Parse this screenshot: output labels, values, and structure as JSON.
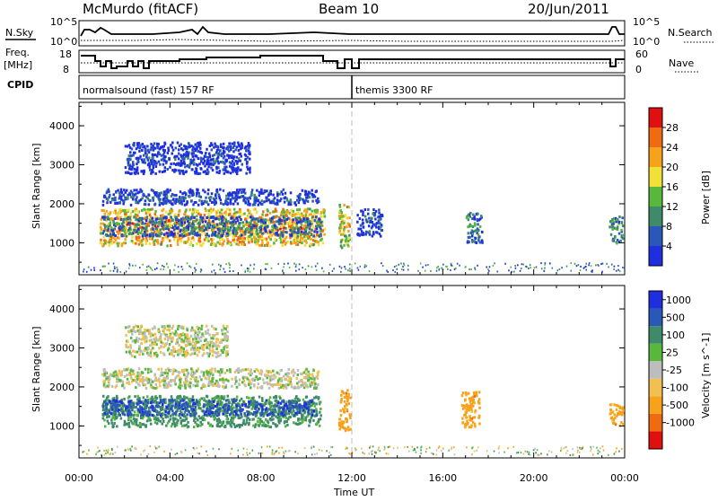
{
  "header": {
    "station": "McMurdo (fitACF)",
    "beam": "Beam 10",
    "date": "20/Jun/2011"
  },
  "top_panels": {
    "nsky_label": "N.Sky",
    "nsky_ticks": [
      "10^5",
      "10^0"
    ],
    "nsearch_label": "N.Search",
    "nsearch_ticks": [
      "10^5",
      "10^0"
    ],
    "freq_label": "Freq.",
    "freq_unit": "[MHz]",
    "freq_ticks": [
      "18",
      "8"
    ],
    "nave_label": "Nave",
    "nave_ticks": [
      "60",
      "0"
    ],
    "cpid_label": "CPID",
    "cpid_segments": [
      {
        "label": "normalsound (fast) 157 RF",
        "start_hour": 0
      },
      {
        "label": "themis 3300 RF",
        "start_hour": 12
      }
    ]
  },
  "x_axis": {
    "label": "Time UT",
    "tick_labels": [
      "00:00",
      "04:00",
      "08:00",
      "12:00",
      "16:00",
      "20:00",
      "00:00"
    ],
    "range_hours": [
      0,
      24
    ]
  },
  "colors": {
    "power": [
      "#1f2fe0",
      "#2a58b8",
      "#3e8a6a",
      "#58b83e",
      "#f0e03a",
      "#f7a21a",
      "#f06a12",
      "#e01010"
    ],
    "velocity": [
      "#e01010",
      "#f06a12",
      "#f7a21a",
      "#f0c050",
      "#bdbdbd",
      "#58b83e",
      "#3e8a6a",
      "#2a58b8",
      "#1f2fe0"
    ]
  },
  "chart_data": [
    {
      "type": "heatmap",
      "title": "",
      "xlabel": "Time UT",
      "ylabel": "Slant Range [km]",
      "xlim": [
        0,
        24
      ],
      "ylim": [
        180,
        4600
      ],
      "yticks": [
        "1000",
        "2000",
        "3000",
        "4000"
      ],
      "colorbar_label": "Power [dB]",
      "colorbar_ticks": [
        "4",
        "8",
        "12",
        "16",
        "20",
        "24",
        "28"
      ],
      "regions": [
        {
          "t0": 0.9,
          "t1": 10.8,
          "r0": 950,
          "r1": 1900,
          "value": 24
        },
        {
          "t0": 1.0,
          "t1": 10.6,
          "r0": 1200,
          "r1": 1700,
          "value": 10
        },
        {
          "t0": 1.0,
          "t1": 10.5,
          "r0": 2000,
          "r1": 2400,
          "value": 6
        },
        {
          "t0": 2.0,
          "t1": 7.5,
          "r0": 2800,
          "r1": 3600,
          "value": 4
        },
        {
          "t0": 11.4,
          "t1": 11.9,
          "r0": 900,
          "r1": 2000,
          "value": 20
        },
        {
          "t0": 12.2,
          "t1": 13.3,
          "r0": 1200,
          "r1": 1900,
          "value": 6
        },
        {
          "t0": 17.0,
          "t1": 17.7,
          "r0": 1000,
          "r1": 1800,
          "value": 10
        },
        {
          "t0": 23.3,
          "t1": 23.9,
          "r0": 1000,
          "r1": 1700,
          "value": 12
        }
      ]
    },
    {
      "type": "heatmap",
      "title": "",
      "xlabel": "Time UT",
      "ylabel": "Slant Range [km]",
      "xlim": [
        0,
        24
      ],
      "ylim": [
        180,
        4600
      ],
      "yticks": [
        "1000",
        "2000",
        "3000",
        "4000"
      ],
      "colorbar_label": "Velocity [m s^-1]",
      "colorbar_ticks": [
        "1000",
        "500",
        "100",
        "25",
        "-25",
        "-100",
        "-500",
        "-1000"
      ],
      "regions": [
        {
          "t0": 1.0,
          "t1": 10.6,
          "r0": 1000,
          "r1": 1800,
          "value": 200
        },
        {
          "t0": 1.0,
          "t1": 10.4,
          "r0": 1300,
          "r1": 1700,
          "value": 800
        },
        {
          "t0": 1.0,
          "t1": 10.5,
          "r0": 2000,
          "r1": 2500,
          "value": 0
        },
        {
          "t0": 2.0,
          "t1": 6.5,
          "r0": 2800,
          "r1": 3600,
          "value": 0
        },
        {
          "t0": 11.4,
          "t1": 11.9,
          "r0": 900,
          "r1": 2000,
          "value": -300
        },
        {
          "t0": 16.8,
          "t1": 17.6,
          "r0": 1000,
          "r1": 1900,
          "value": -300
        },
        {
          "t0": 23.3,
          "t1": 23.9,
          "r0": 1000,
          "r1": 1600,
          "value": -300
        }
      ]
    }
  ]
}
